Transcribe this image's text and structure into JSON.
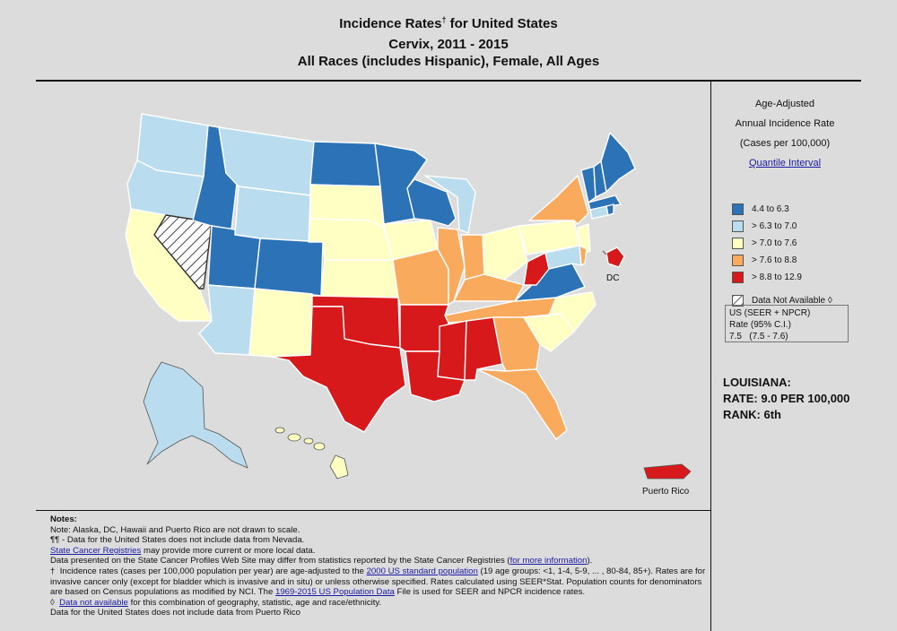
{
  "title": {
    "line1": "Incidence Rates",
    "line1_sup": "†",
    "line1_rest": " for United States",
    "line2": "Cervix, 2011 - 2015",
    "line3": "All Races (includes Hispanic), Female, All Ages"
  },
  "legend": {
    "heading1": "Age-Adjusted",
    "heading2": "Annual Incidence Rate",
    "heading3": "(Cases per 100,000)",
    "link": "Quantile Interval",
    "items": [
      {
        "label": "4.4  to  6.3",
        "color": "#2b73b6"
      },
      {
        "label": "> 6.3  to  7.0",
        "color": "#b9dcee"
      },
      {
        "label": "> 7.0  to  7.6",
        "color": "#ffffc4"
      },
      {
        "label": "> 7.6  to  8.8",
        "color": "#f9aa5d"
      },
      {
        "label": "> 8.8  to  12.9",
        "color": "#d7191c"
      }
    ],
    "na_label": "Data Not Available",
    "na_mark": "◊"
  },
  "us_rate": {
    "line1": "US (SEER + NPCR)",
    "line2": "Rate (95% C.I.)",
    "value": "7.5",
    "ci": "(7.5 - 7.6)"
  },
  "selected": {
    "state": "LOUISIANA:",
    "rate": "RATE: 9.0 PER 100,000",
    "rank": "RANK: 6th"
  },
  "map_labels": {
    "dc": "DC",
    "pr": "Puerto Rico"
  },
  "notes": {
    "heading": "Notes:",
    "n1": "Note: Alaska, DC, Hawaii and Puerto Rico are not drawn to scale.",
    "n2": "¶¶ - Data for the United States does not include data from Nevada.",
    "n3_link": "State Cancer Registries",
    "n3_rest": " may provide more current or more local data.",
    "n4": "Data presented on the State Cancer Profiles Web Site may differ from statistics reported by the State Cancer Registries (",
    "n4_link": "for more information",
    "n4_end": ").",
    "n5_mark": "†",
    "n5_a": "Incidence rates (cases per 100,000 population per year) are age-adjusted to the ",
    "n5_link": "2000 US standard population",
    "n5_b": " (19 age groups: <1, 1-4, 5-9, ... , 80-84, 85+). Rates are for invasive cancer only (except for bladder which is invasive and in situ) or unless otherwise specified. Rates calculated using SEER*Stat. Population counts for denominators are based on Census populations as modified  by NCI. The ",
    "n5_link2": "1969-2015 US Population Data",
    "n5_c": " File is used for SEER and NPCR incidence rates.",
    "n6_mark": "◊",
    "n6_link": "Data not available",
    "n6_rest": " for this combination of geography, statistic, age and race/ethnicity.",
    "n7": "Data for the United States does not include data from Puerto Rico"
  }
}
